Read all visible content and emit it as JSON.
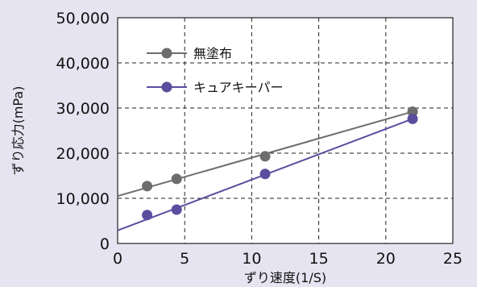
{
  "chart_data": {
    "type": "scatter",
    "xlabel": "ずり速度(1/S)",
    "ylabel": "ずり応力(mPa)",
    "xlim": [
      0,
      25
    ],
    "ylim": [
      0,
      50000
    ],
    "x_ticks": [
      0,
      5,
      10,
      15,
      20,
      25
    ],
    "y_ticks": [
      0,
      10000,
      20000,
      30000,
      40000,
      50000
    ],
    "x_tick_labels": [
      "0",
      "5",
      "10",
      "15",
      "20",
      "25"
    ],
    "y_tick_labels": [
      "0",
      "10,000",
      "20,000",
      "30,000",
      "40,000",
      "50,000"
    ],
    "grid": "dashed",
    "legend_position": "top-left",
    "series": [
      {
        "name": "無塗布",
        "color": "#6d6d6d",
        "x": [
          2.2,
          4.4,
          11,
          22
        ],
        "y": [
          12700,
          14300,
          19300,
          29200
        ],
        "trendline": {
          "x": [
            0,
            22
          ],
          "y": [
            10500,
            29200
          ]
        }
      },
      {
        "name": "キュアキーパー",
        "color": "#5a4e9e",
        "x": [
          2.2,
          4.4,
          11,
          22
        ],
        "y": [
          6300,
          7500,
          15400,
          27600
        ],
        "trendline": {
          "x": [
            0,
            22
          ],
          "y": [
            2900,
            27600
          ]
        }
      }
    ]
  }
}
